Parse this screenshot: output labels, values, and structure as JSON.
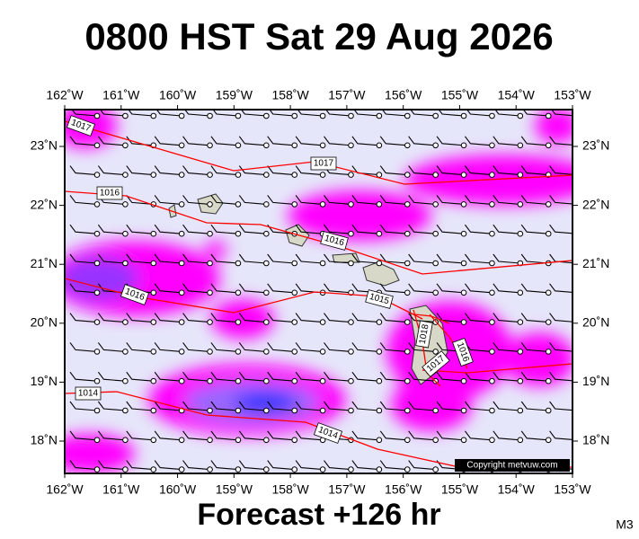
{
  "title": "0800 HST Sat 29 Aug 2026",
  "longitude_labels": [
    "162˚W",
    "161˚W",
    "160˚W",
    "159˚W",
    "158˚W",
    "157˚W",
    "156˚W",
    "155˚W",
    "154˚W",
    "153˚W"
  ],
  "latitude_labels": [
    "23˚N",
    "22˚N",
    "21˚N",
    "20˚N",
    "19˚N",
    "18˚N"
  ],
  "isobar_labels": [
    "1017",
    "1017",
    "1016",
    "1016",
    "1016",
    "1015",
    "1018",
    "1016",
    "1017",
    "1014",
    "1014"
  ],
  "copyright": "Copyright metvuw.com",
  "footer": "Forecast +126 hr",
  "model_code": "M3"
}
